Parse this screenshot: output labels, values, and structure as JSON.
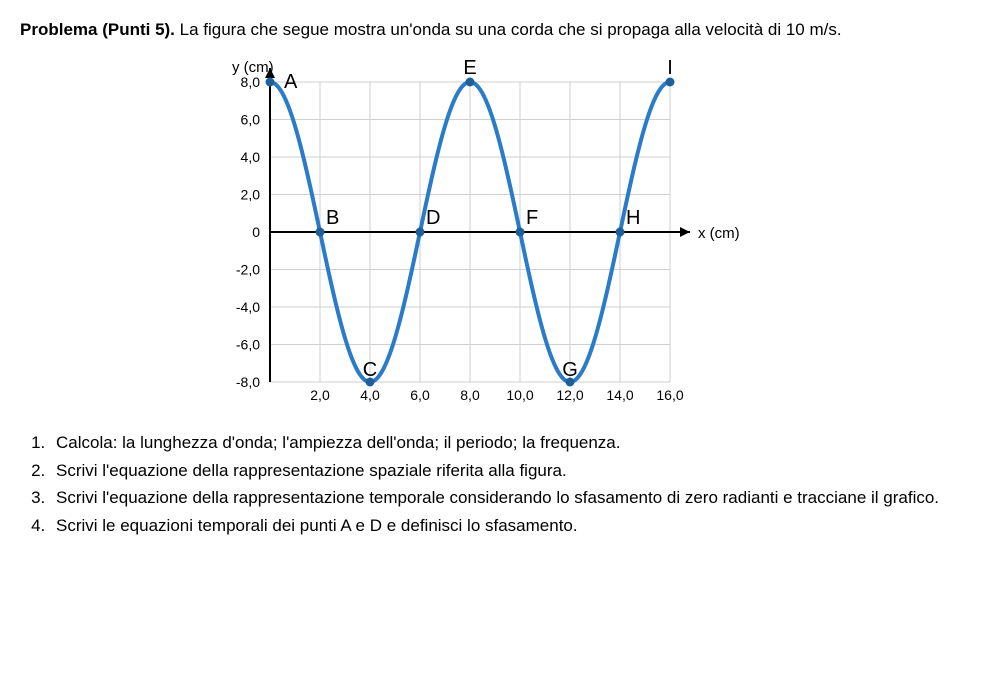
{
  "title_bold": "Problema (Punti 5).",
  "title_rest": " La figura che segue mostra un'onda su una corda che si propaga alla velocità di 10 m/s.",
  "chart": {
    "y_label": "y (cm)",
    "x_label": "x (cm)",
    "y_ticks": [
      "8,0",
      "6,0",
      "4,0",
      "2,0",
      "0",
      "-2,0",
      "-4,0",
      "-6,0",
      "-8,0"
    ],
    "y_tick_vals": [
      8,
      6,
      4,
      2,
      0,
      -2,
      -4,
      -6,
      -8
    ],
    "x_ticks": [
      "2,0",
      "4,0",
      "6,0",
      "8,0",
      "10,0",
      "12,0",
      "14,0",
      "16,0"
    ],
    "x_tick_vals": [
      2,
      4,
      6,
      8,
      10,
      12,
      14,
      16
    ],
    "curve_color": "#2a7bc8",
    "grid_color": "#cfcfcf",
    "axis_color": "#000000",
    "point_color": "#1f5f9a",
    "x_min": 0,
    "x_max": 16,
    "y_min": -8,
    "y_max": 8,
    "amplitude": 8,
    "wavelength": 8,
    "points": [
      {
        "id": "A",
        "x": 0,
        "y": 8
      },
      {
        "id": "B",
        "x": 2,
        "y": 0
      },
      {
        "id": "C",
        "x": 4,
        "y": -8
      },
      {
        "id": "D",
        "x": 6,
        "y": 0
      },
      {
        "id": "E",
        "x": 8,
        "y": 8
      },
      {
        "id": "F",
        "x": 10,
        "y": 0
      },
      {
        "id": "G",
        "x": 12,
        "y": -8
      },
      {
        "id": "H",
        "x": 14,
        "y": 0
      },
      {
        "id": "I",
        "x": 16,
        "y": 8
      }
    ]
  },
  "questions": [
    "Calcola: la lunghezza d'onda; l'ampiezza dell'onda; il periodo; la frequenza.",
    "Scrivi l'equazione della rappresentazione spaziale riferita alla figura.",
    "Scrivi l'equazione della rappresentazione temporale considerando lo sfasamento di zero radianti e tracciane il grafico.",
    "Scrivi le equazioni temporali dei punti A e D e definisci lo sfasamento."
  ]
}
